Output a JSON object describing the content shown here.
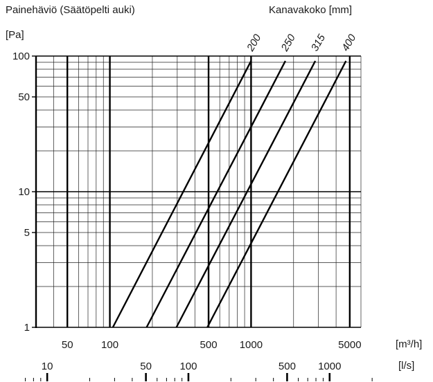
{
  "title": "Painehäviö (Säätöpelti auki)",
  "legend_title": "Kanavakoko [mm]",
  "y_unit": "[Pa]",
  "x_unit_m3h": "[m³/h]",
  "x_unit_ls": "[l/s]",
  "chart_data": {
    "type": "line",
    "title": "Painehäviö (Säätöpelti auki)",
    "legend_title": "Kanavakoko [mm]",
    "ylabel": "[Pa]",
    "xlabel": "[m³/h]",
    "xlabel2": "[l/s]",
    "xscale": "log",
    "yscale": "log",
    "xlim": [
      30,
      6000
    ],
    "ylim": [
      1,
      100
    ],
    "grid": true,
    "y_ticks": [
      {
        "value": 1,
        "label": "1"
      },
      {
        "value": 5,
        "label": "5"
      },
      {
        "value": 10,
        "label": "10"
      },
      {
        "value": 50,
        "label": "50"
      },
      {
        "value": 100,
        "label": "100"
      }
    ],
    "x_ticks": [
      {
        "value": 50,
        "label": "50"
      },
      {
        "value": 100,
        "label": "100"
      },
      {
        "value": 500,
        "label": "500"
      },
      {
        "value": 1000,
        "label": "1000"
      },
      {
        "value": 5000,
        "label": "5000"
      }
    ],
    "x2_ticks": [
      {
        "value": 10,
        "label": "10"
      },
      {
        "value": 50,
        "label": "50"
      },
      {
        "value": 100,
        "label": "100"
      },
      {
        "value": 500,
        "label": "500"
      },
      {
        "value": 1000,
        "label": "1000"
      }
    ],
    "series": [
      {
        "name": "200",
        "x": [
          105,
          1000
        ],
        "y": [
          1,
          92
        ]
      },
      {
        "name": "250",
        "x": [
          182,
          1750
        ],
        "y": [
          1,
          92
        ]
      },
      {
        "name": "315",
        "x": [
          296,
          2850
        ],
        "y": [
          1,
          92
        ]
      },
      {
        "name": "400",
        "x": [
          490,
          4700
        ],
        "y": [
          1,
          92
        ]
      }
    ]
  }
}
